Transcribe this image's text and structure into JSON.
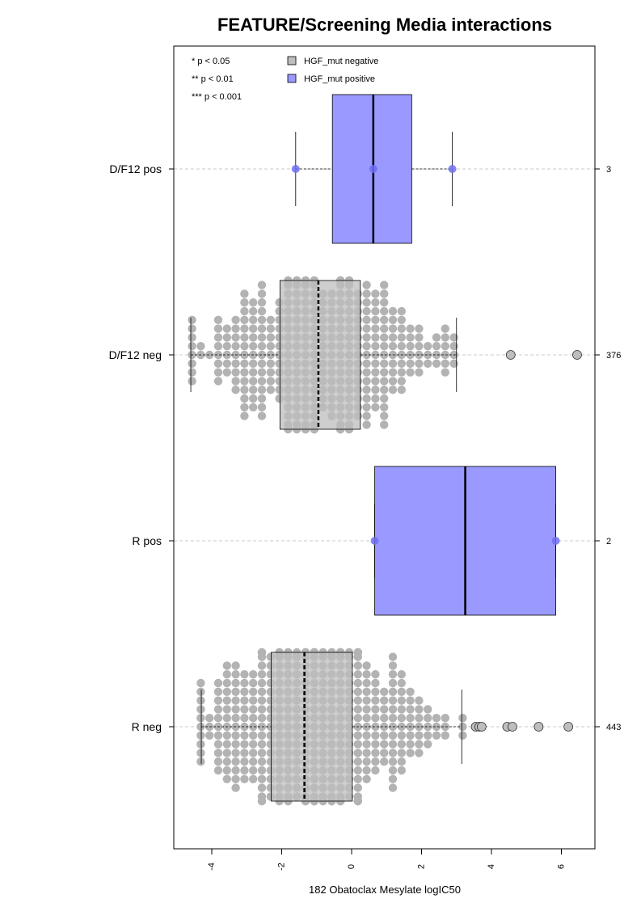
{
  "chart_data": {
    "type": "boxplot",
    "orientation": "horizontal",
    "title": "FEATURE/Screening Media interactions",
    "xlabel": "182 Obatoclax Mesylate logIC50",
    "ylabel": "",
    "xlim": [
      -5.0,
      7.0
    ],
    "xticks": [
      -4,
      -2,
      0,
      2,
      4,
      6
    ],
    "grid": "dashed horizontal lines at each category",
    "significance_legend": [
      "* p < 0.05",
      "** p < 0.01",
      "*** p < 0.001"
    ],
    "legend": {
      "placement": "top-left",
      "entries": [
        {
          "label": "HGF_mut negative",
          "color": "#bebebe"
        },
        {
          "label": "HGF_mut positive",
          "color": "#9999ff"
        }
      ]
    },
    "categories": [
      {
        "label": "D/F12 pos",
        "count": "3",
        "group": "positive",
        "box": {
          "whisker_low": -1.6,
          "q1": -0.55,
          "median": 0.62,
          "q3": 1.72,
          "whisker_high": 2.88
        },
        "points": [
          -1.6,
          0.62,
          2.88
        ],
        "outliers": []
      },
      {
        "label": "D/F12 neg",
        "count": "376",
        "group": "negative",
        "box": {
          "whisker_low": -4.6,
          "q1": -2.05,
          "median": -0.95,
          "q3": 0.25,
          "whisker_high": 3.0
        },
        "outliers": [
          4.55,
          6.45
        ]
      },
      {
        "label": "R pos",
        "count": "2",
        "group": "positive",
        "box": {
          "whisker_low": 0.66,
          "q1": 0.66,
          "median": 3.25,
          "q3": 5.84,
          "whisker_high": 5.84
        },
        "points": [
          0.66,
          5.84
        ],
        "outliers": []
      },
      {
        "label": "R neg",
        "count": "443",
        "group": "negative",
        "box": {
          "whisker_low": -4.3,
          "q1": -2.3,
          "median": -1.35,
          "q3": 0.02,
          "whisker_high": 3.15
        },
        "outliers": [
          3.55,
          3.65,
          3.72,
          4.45,
          4.6,
          5.35,
          6.2
        ]
      }
    ]
  },
  "colors": {
    "negative_fill": "#bebebe",
    "negative_point": "#b3b3b3",
    "positive_fill": "#9999ff",
    "positive_point": "#6f6ff2",
    "grid": "#c8c8c8"
  }
}
